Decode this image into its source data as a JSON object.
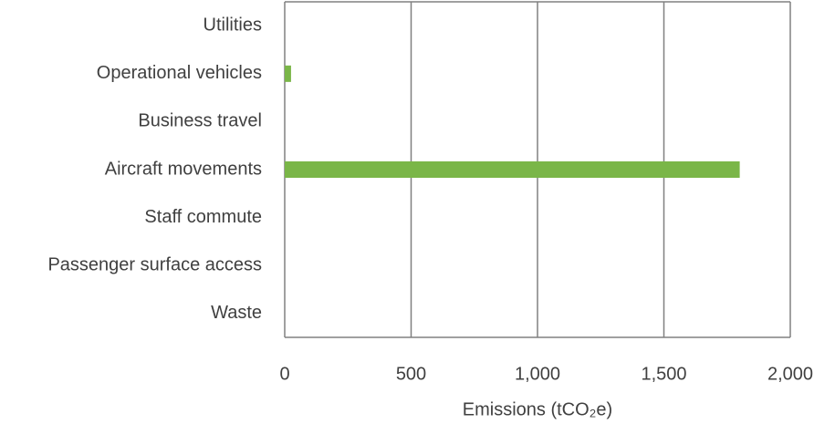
{
  "chart_data": {
    "type": "hbar",
    "categories": [
      "Utilities",
      "Operational vehicles",
      "Business travel",
      "Aircraft movements",
      "Staff commute",
      "Passenger surface access",
      "Waste"
    ],
    "values": [
      0,
      25,
      0,
      1800,
      0,
      0,
      0
    ],
    "color": "#7ab648",
    "xlabel": "Emissions (tCO₂e)",
    "xlim": [
      0,
      2000
    ],
    "xticks": [
      0,
      500,
      {
        "value": 1000,
        "label": "1,000"
      },
      {
        "value": 1500,
        "label": "1,500"
      },
      {
        "value": 2000,
        "label": "2,000"
      }
    ],
    "grid": true
  }
}
